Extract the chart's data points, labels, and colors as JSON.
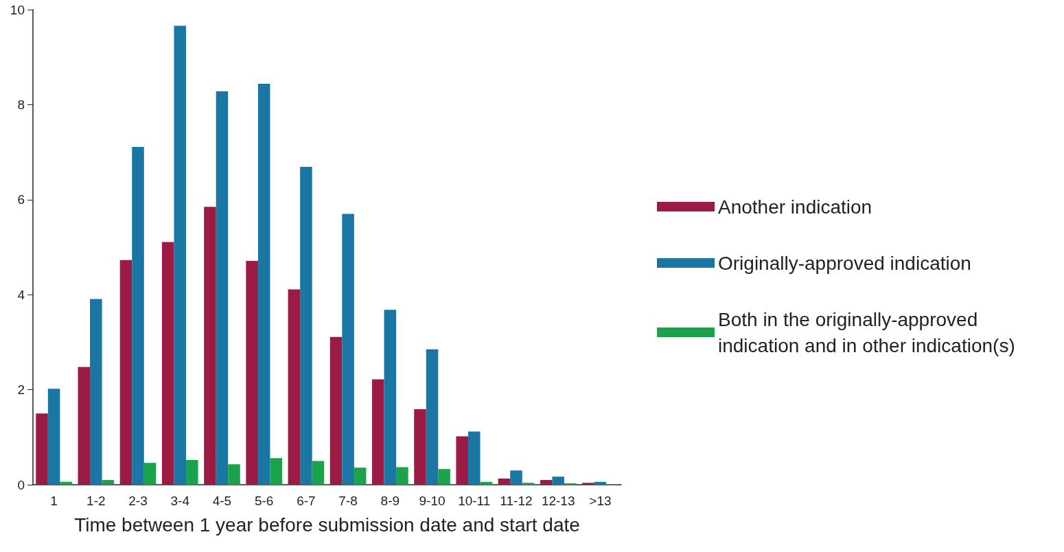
{
  "chart_data": {
    "type": "bar",
    "xlabel": "Time between 1 year before submission date and start date",
    "categories": [
      "1",
      "1-2",
      "2-3",
      "3-4",
      "4-5",
      "5-6",
      "6-7",
      "7-8",
      "8-9",
      "9-10",
      "10-11",
      "11-12",
      "12-13",
      ">13"
    ],
    "series": [
      {
        "name": "Another indication",
        "color": "#9b1b45",
        "values": [
          1.5,
          2.48,
          4.73,
          5.11,
          5.85,
          4.71,
          4.11,
          3.11,
          2.22,
          1.59,
          1.02,
          0.13,
          0.1,
          0.04
        ]
      },
      {
        "name": "Originally-approved indication",
        "color": "#1a77a3",
        "values": [
          2.02,
          3.91,
          7.11,
          9.66,
          8.28,
          8.44,
          6.69,
          5.7,
          3.68,
          2.85,
          1.12,
          0.3,
          0.17,
          0.06
        ]
      },
      {
        "name": "Both in the originally-approved indication and in other indication(s)",
        "color": "#1aa34a",
        "values": [
          0.06,
          0.1,
          0.46,
          0.52,
          0.43,
          0.56,
          0.5,
          0.36,
          0.37,
          0.33,
          0.06,
          0.04,
          0.03,
          0.01
        ]
      }
    ],
    "ylim": [
      0,
      10
    ],
    "yticks": [
      0,
      2,
      4,
      6,
      8,
      10
    ],
    "grid": false,
    "legend": "right"
  }
}
